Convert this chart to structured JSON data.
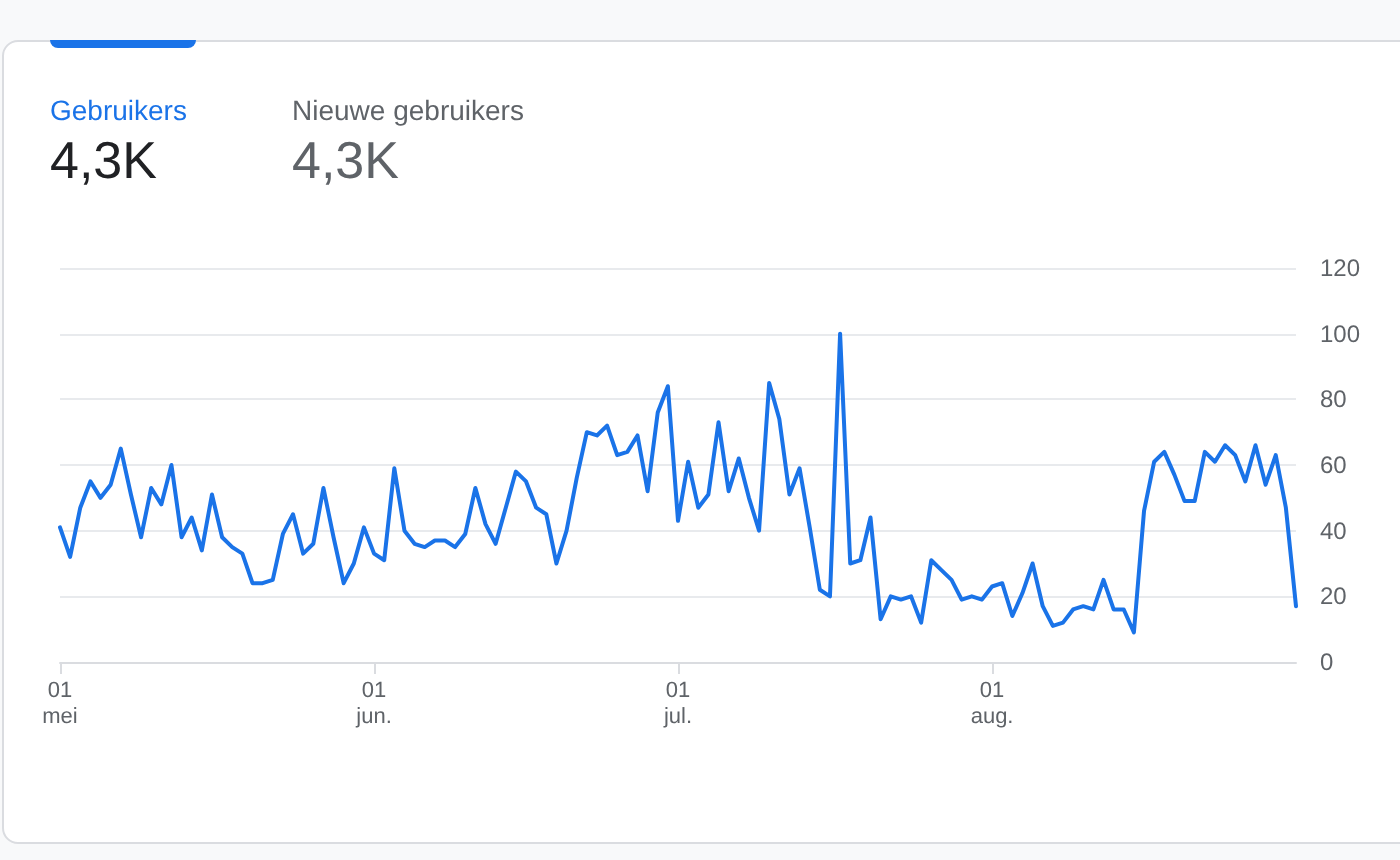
{
  "chart_data": {
    "type": "line",
    "annotations": [
      "Gebruikers",
      "4,3K",
      "Nieuwe gebruikers",
      "4,3K"
    ],
    "x": [
      "--05-01",
      "--05-02",
      "--05-03",
      "--05-04",
      "--05-05",
      "--05-06",
      "--05-07",
      "--05-08",
      "--05-09",
      "--05-10",
      "--05-11",
      "--05-12",
      "--05-13",
      "--05-14",
      "--05-15",
      "--05-16",
      "--05-17",
      "--05-18",
      "--05-19",
      "--05-20",
      "--05-21",
      "--05-22",
      "--05-23",
      "--05-24",
      "--05-25",
      "--05-26",
      "--05-27",
      "--05-28",
      "--05-29",
      "--05-30",
      "--05-31",
      "--06-01",
      "--06-02",
      "--06-03",
      "--06-04",
      "--06-05",
      "--06-06",
      "--06-07",
      "--06-08",
      "--06-09",
      "--06-10",
      "--06-11",
      "--06-12",
      "--06-13",
      "--06-14",
      "--06-15",
      "--06-16",
      "--06-17",
      "--06-18",
      "--06-19",
      "--06-20",
      "--06-21",
      "--06-22",
      "--06-23",
      "--06-24",
      "--06-25",
      "--06-26",
      "--06-27",
      "--06-28",
      "--06-29",
      "--06-30",
      "--07-01",
      "--07-02",
      "--07-03",
      "--07-04",
      "--07-05",
      "--07-06",
      "--07-07",
      "--07-08",
      "--07-09",
      "--07-10",
      "--07-11",
      "--07-12",
      "--07-13",
      "--07-14",
      "--07-15",
      "--07-16",
      "--07-17",
      "--07-18",
      "--07-19",
      "--07-20",
      "--07-21",
      "--07-22",
      "--07-23",
      "--07-24",
      "--07-25",
      "--07-26",
      "--07-27",
      "--07-28",
      "--07-29",
      "--07-30",
      "--07-31",
      "--08-01",
      "--08-02",
      "--08-03",
      "--08-04",
      "--08-05",
      "--08-06",
      "--08-07",
      "--08-08",
      "--08-09",
      "--08-10",
      "--08-11",
      "--08-12",
      "--08-13",
      "--08-14",
      "--08-15",
      "--08-16",
      "--08-17",
      "--08-18",
      "--08-19",
      "--08-20",
      "--08-21",
      "--08-22",
      "--08-23",
      "--08-24",
      "--08-25",
      "--08-26",
      "--08-27",
      "--08-28",
      "--08-29",
      "--08-30",
      "--08-31"
    ],
    "series": [
      {
        "color": "#1a73e8",
        "values": [
          41,
          32,
          47,
          55,
          50,
          54,
          65,
          51,
          38,
          53,
          48,
          60,
          38,
          44,
          34,
          51,
          38,
          35,
          33,
          24,
          24,
          25,
          39,
          45,
          33,
          36,
          53,
          38,
          24,
          30,
          41,
          33,
          31,
          59,
          40,
          36,
          35,
          37,
          37,
          35,
          39,
          53,
          42,
          36,
          47,
          58,
          55,
          47,
          45,
          30,
          40,
          56,
          70,
          69,
          72,
          63,
          64,
          69,
          52,
          76,
          84,
          43,
          61,
          47,
          51,
          73,
          52,
          62,
          50,
          40,
          85,
          74,
          51,
          59,
          41,
          22,
          20,
          100,
          30,
          31,
          44,
          13,
          20,
          19,
          20,
          12,
          31,
          28,
          25,
          19,
          20,
          19,
          23,
          24,
          14,
          21,
          30,
          17,
          11,
          12,
          16,
          17,
          16,
          25,
          16,
          16,
          9,
          46,
          61,
          64,
          57,
          49,
          49,
          64,
          61,
          66,
          63,
          55,
          66,
          54,
          63,
          47,
          17
        ]
      }
    ],
    "xlim": [
      "--05-01",
      "--08-31"
    ],
    "xticks": [
      {
        "value": "--05-01",
        "label": "01\nmei"
      },
      {
        "value": "--06-01",
        "label": "01\njun."
      },
      {
        "value": "--07-01",
        "label": "01\njul."
      },
      {
        "value": "--08-01",
        "label": "01\naug."
      }
    ],
    "ylim": [
      0,
      120
    ],
    "yticks": [
      0,
      20,
      40,
      60,
      80,
      100,
      120
    ],
    "grid": "y",
    "marker": "none",
    "line_style": "solid"
  }
}
